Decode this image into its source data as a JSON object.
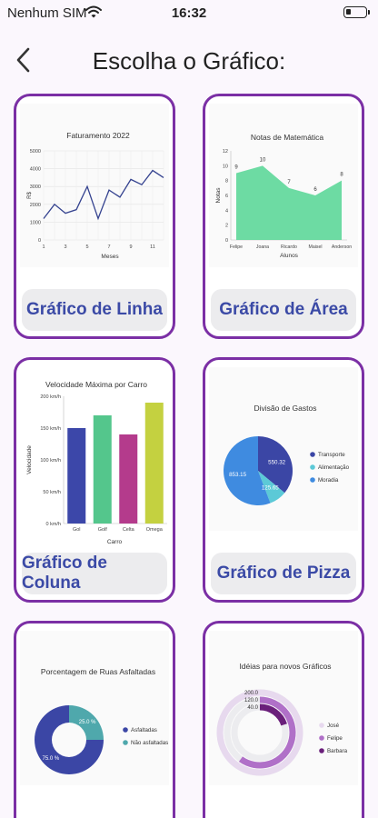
{
  "status_bar": {
    "carrier": "Nenhum SIM",
    "time": "16:32"
  },
  "header": {
    "title": "Escolha o Gráfico:"
  },
  "cards": [
    {
      "button_label": "Gráfico de Linha"
    },
    {
      "button_label": "Gráfico de Área"
    },
    {
      "button_label": "Gráfico de Coluna"
    },
    {
      "button_label": "Gráfico de Pizza"
    }
  ],
  "chart_data": [
    {
      "type": "line",
      "title": "Faturamento 2022",
      "xlabel": "Meses",
      "ylabel": "R$",
      "x": [
        1,
        2,
        3,
        4,
        5,
        6,
        7,
        8,
        9,
        10,
        11,
        12
      ],
      "series": [
        {
          "values": [
            1200,
            2000,
            1500,
            1700,
            3000,
            1200,
            2800,
            2400,
            3400,
            3100,
            3900,
            3500
          ]
        }
      ],
      "ylim": [
        0,
        5000
      ],
      "y_ticks": [
        "0",
        "1000",
        "2000",
        "3000",
        "4000",
        "5000"
      ],
      "x_ticks": [
        "1",
        "3",
        "5",
        "7",
        "9",
        "11"
      ],
      "grid": true,
      "color": "#34428f"
    },
    {
      "type": "area",
      "title": "Notas de Matemática",
      "xlabel": "Alunos",
      "ylabel": "Notas",
      "categories": [
        "Felipe",
        "Joana",
        "Ricardo",
        "Maisel",
        "Anderson"
      ],
      "values": [
        9,
        10,
        7,
        6,
        8
      ],
      "data_labels": [
        "9",
        "10",
        "7",
        "6",
        "8"
      ],
      "ylim": [
        0,
        12
      ],
      "y_ticks": [
        "0",
        "2",
        "4",
        "6",
        "8",
        "10",
        "12"
      ],
      "color": "#65d99e"
    },
    {
      "type": "bar",
      "title": "Velocidade Máxima por Carro",
      "xlabel": "Carro",
      "ylabel": "Velocidade",
      "categories": [
        "Gol",
        "Golf",
        "Celta",
        "Omega"
      ],
      "values": [
        150,
        170,
        140,
        190
      ],
      "ylim": [
        0,
        200
      ],
      "y_ticks": [
        "0 km/h",
        "50 km/h",
        "100 km/h",
        "150 km/h",
        "200 km/h"
      ],
      "colors": [
        "#3c47a9",
        "#54c68c",
        "#b43b8c",
        "#c4d140"
      ]
    },
    {
      "type": "pie",
      "title": "Divisão de Gastos",
      "labels": [
        "Transporte",
        "Alimentação",
        "Moradia"
      ],
      "values": [
        550.32,
        125.65,
        853.15
      ],
      "data_labels": [
        "550.32",
        "125.65",
        "853.15"
      ],
      "colors": [
        "#3b46a5",
        "#5cc9d7",
        "#3f8be0"
      ],
      "legend": "right"
    },
    {
      "type": "pie",
      "title": "Porcentagem de Ruas Asfaltadas",
      "labels": [
        "Asfaltadas",
        "Não asfaltadas"
      ],
      "values": [
        75,
        25
      ],
      "data_labels": [
        "75.0 %",
        "25.0 %"
      ],
      "colors": [
        "#3b46a5",
        "#4fa8ac"
      ],
      "legend": "right"
    },
    {
      "type": "pie",
      "title": "Idéias para novos Gráficos",
      "labels": [
        "José",
        "Felipe",
        "Barbara"
      ],
      "values": [
        200,
        120,
        40
      ],
      "data_labels": [
        "200.0",
        "120.0",
        "40.0"
      ],
      "colors": [
        "#e7d9ee",
        "#b070c8",
        "#6a1f7a"
      ],
      "legend": "right"
    }
  ]
}
